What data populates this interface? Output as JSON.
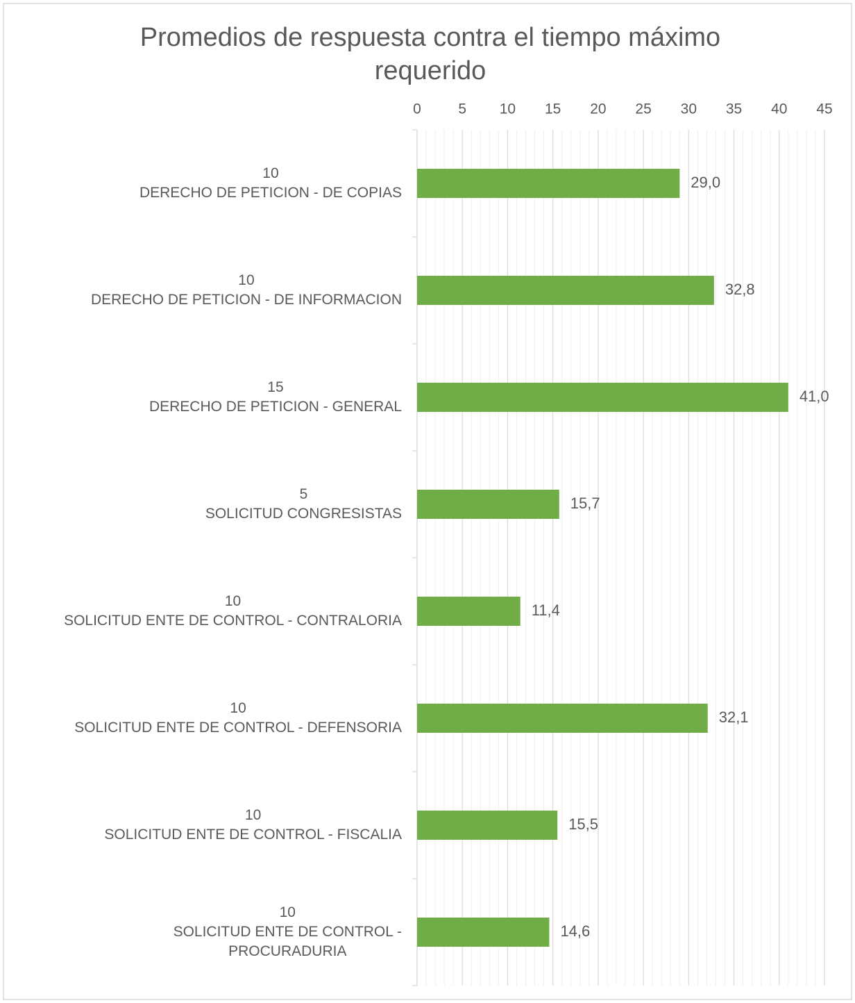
{
  "chart_data": {
    "type": "barh",
    "title": "Promedios de respuesta contra el tiempo máximo requerido",
    "categories": [
      "10\nDERECHO DE PETICION - DE COPIAS",
      "10\nDERECHO DE PETICION - DE INFORMACION",
      "15\nDERECHO DE PETICION - GENERAL",
      "5\nSOLICITUD CONGRESISTAS",
      "10\nSOLICITUD ENTE DE CONTROL - CONTRALORIA",
      "10\nSOLICITUD ENTE DE CONTROL - DEFENSORIA",
      "10\nSOLICITUD ENTE DE CONTROL - FISCALIA",
      "10\nSOLICITUD ENTE DE CONTROL -\nPROCURADURIA"
    ],
    "values": [
      29.0,
      32.8,
      41.0,
      15.7,
      11.4,
      32.1,
      15.5,
      14.6
    ],
    "value_labels": [
      "29,0",
      "32,8",
      "41,0",
      "15,7",
      "11,4",
      "32,1",
      "15,5",
      "14,6"
    ],
    "color": "#70ad47",
    "xlim": [
      0,
      45
    ],
    "xticks": [
      0,
      5,
      10,
      15,
      20,
      25,
      30,
      35,
      40,
      45
    ],
    "grid": true,
    "minor_grid_divisions": 5
  }
}
